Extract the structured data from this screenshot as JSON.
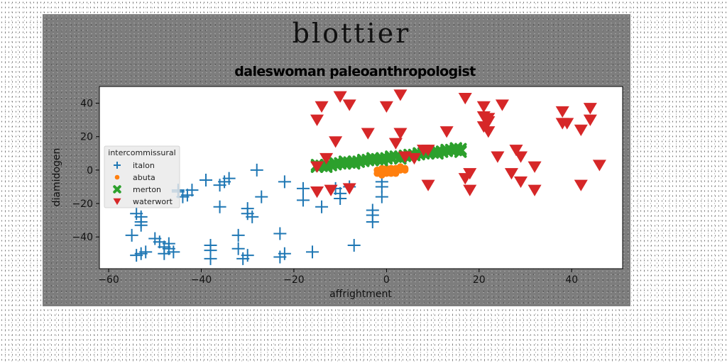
{
  "chart_data": {
    "type": "scatter",
    "suptitle": "blottier",
    "title": "daleswoman paleoanthropologist",
    "xlabel": "affrightment",
    "ylabel": "diamidogen",
    "xlim": [
      -62,
      51
    ],
    "ylim": [
      -59,
      50
    ],
    "xticks": [
      -60,
      -40,
      -20,
      0,
      20,
      40
    ],
    "yticks": [
      -40,
      -20,
      0,
      20,
      40
    ],
    "grid": false,
    "legend": {
      "title": "intercommissural",
      "placement": "center-left"
    },
    "series": [
      {
        "name": "italon",
        "marker": "plus",
        "color": "#1f77b4",
        "points": [
          [
            -55,
            -39
          ],
          [
            -54,
            -26
          ],
          [
            -53,
            -28
          ],
          [
            -53,
            -31
          ],
          [
            -53,
            -33
          ],
          [
            -54,
            -51
          ],
          [
            -53,
            -50
          ],
          [
            -52,
            -49
          ],
          [
            -50,
            -41
          ],
          [
            -49,
            -43
          ],
          [
            -48,
            -46
          ],
          [
            -47,
            -44
          ],
          [
            -47,
            -47
          ],
          [
            -46,
            -49
          ],
          [
            -48,
            -50
          ],
          [
            -45,
            -13
          ],
          [
            -44,
            -16
          ],
          [
            -45,
            -12
          ],
          [
            -42,
            -12
          ],
          [
            -43,
            -15
          ],
          [
            -39,
            -6
          ],
          [
            -38,
            -45
          ],
          [
            -38,
            -48
          ],
          [
            -38,
            -53
          ],
          [
            -36,
            -22
          ],
          [
            -36,
            -9
          ],
          [
            -35,
            -7
          ],
          [
            -34,
            -5
          ],
          [
            -32,
            -39
          ],
          [
            -32,
            -47
          ],
          [
            -31,
            -53
          ],
          [
            -30,
            -51
          ],
          [
            -30,
            -23
          ],
          [
            -30,
            -26
          ],
          [
            -29,
            -28
          ],
          [
            -28,
            0
          ],
          [
            -27,
            -16
          ],
          [
            -23,
            -38
          ],
          [
            -23,
            -52
          ],
          [
            -22,
            -50
          ],
          [
            -22,
            -7
          ],
          [
            -18,
            -11
          ],
          [
            -18,
            -18
          ],
          [
            -16,
            -49
          ],
          [
            -14,
            -22
          ],
          [
            -11,
            -11
          ],
          [
            -10,
            -14
          ],
          [
            -10,
            -17
          ],
          [
            -8,
            -10
          ],
          [
            -7,
            -45
          ],
          [
            -3,
            -24
          ],
          [
            -3,
            -27
          ],
          [
            -3,
            -31
          ],
          [
            -1,
            -16
          ],
          [
            -1,
            -10
          ],
          [
            -1,
            -7
          ]
        ]
      },
      {
        "name": "abuta",
        "marker": "circle",
        "color": "#ff7f0e",
        "points": [
          [
            -2,
            -2
          ],
          [
            -2,
            0
          ],
          [
            -1,
            -1
          ],
          [
            -1,
            -3
          ],
          [
            0,
            0
          ],
          [
            0,
            -2
          ],
          [
            0,
            -1
          ],
          [
            1,
            -2
          ],
          [
            1,
            0
          ],
          [
            1,
            1
          ],
          [
            2,
            -1
          ],
          [
            2,
            0
          ],
          [
            2,
            1
          ],
          [
            3,
            0
          ],
          [
            3,
            1
          ],
          [
            3,
            2
          ],
          [
            4,
            1
          ],
          [
            4,
            0
          ],
          [
            -1,
            1
          ],
          [
            0,
            1
          ],
          [
            1,
            -1
          ],
          [
            2,
            -2
          ]
        ]
      },
      {
        "name": "merton",
        "marker": "x",
        "color": "#2ca02c",
        "points": [
          [
            -15,
            2
          ],
          [
            -14,
            2.5
          ],
          [
            -13,
            3
          ],
          [
            -12,
            3
          ],
          [
            -11,
            3.5
          ],
          [
            -10,
            4
          ],
          [
            -9,
            4
          ],
          [
            -8,
            4.5
          ],
          [
            -7,
            5
          ],
          [
            -6,
            5
          ],
          [
            -5,
            5.5
          ],
          [
            -4,
            6
          ],
          [
            -3,
            6
          ],
          [
            -2,
            6.5
          ],
          [
            -1,
            7
          ],
          [
            0,
            7
          ],
          [
            1,
            7.5
          ],
          [
            2,
            8
          ],
          [
            3,
            8
          ],
          [
            4,
            8.5
          ],
          [
            5,
            9
          ],
          [
            6,
            9
          ],
          [
            7,
            9.5
          ],
          [
            8,
            10
          ],
          [
            9,
            10
          ],
          [
            10,
            10.5
          ],
          [
            11,
            11
          ],
          [
            12,
            11
          ],
          [
            13,
            11.5
          ],
          [
            14,
            12
          ],
          [
            15,
            12
          ],
          [
            16,
            12.5
          ],
          [
            -15,
            3
          ],
          [
            -13,
            2
          ],
          [
            -11,
            4
          ],
          [
            -9,
            5
          ],
          [
            -7,
            4
          ],
          [
            -5,
            6
          ],
          [
            -3,
            7
          ],
          [
            -1,
            6
          ],
          [
            1,
            8
          ],
          [
            3,
            7
          ],
          [
            5,
            8
          ],
          [
            7,
            10
          ],
          [
            9,
            11
          ],
          [
            11,
            10
          ],
          [
            13,
            12
          ],
          [
            15,
            13
          ],
          [
            16,
            11
          ]
        ]
      },
      {
        "name": "waterwort",
        "marker": "triangle-down",
        "color": "#d62728",
        "points": [
          [
            -15,
            30
          ],
          [
            -14,
            38
          ],
          [
            -10,
            44
          ],
          [
            -8,
            39
          ],
          [
            -4,
            22
          ],
          [
            0,
            38
          ],
          [
            3,
            45
          ],
          [
            3,
            22
          ],
          [
            2,
            16
          ],
          [
            4,
            8
          ],
          [
            -11,
            17
          ],
          [
            -13,
            7
          ],
          [
            -15,
            2
          ],
          [
            -15,
            -13
          ],
          [
            -12,
            -12
          ],
          [
            -8,
            -11
          ],
          [
            6,
            7
          ],
          [
            8,
            12
          ],
          [
            9,
            12
          ],
          [
            9,
            -9
          ],
          [
            13,
            23
          ],
          [
            17,
            43
          ],
          [
            17,
            -5
          ],
          [
            18,
            -2
          ],
          [
            18,
            -12
          ],
          [
            21,
            38
          ],
          [
            21,
            32
          ],
          [
            21,
            26
          ],
          [
            22,
            29
          ],
          [
            22,
            23
          ],
          [
            22,
            31
          ],
          [
            25,
            39
          ],
          [
            24,
            8
          ],
          [
            27,
            -2
          ],
          [
            28,
            12
          ],
          [
            29,
            8
          ],
          [
            29,
            -7
          ],
          [
            32,
            2
          ],
          [
            32,
            -12
          ],
          [
            38,
            35
          ],
          [
            38,
            28
          ],
          [
            39,
            28
          ],
          [
            42,
            24
          ],
          [
            42,
            -9
          ],
          [
            44,
            37
          ],
          [
            44,
            30
          ],
          [
            46,
            3
          ]
        ]
      }
    ]
  }
}
